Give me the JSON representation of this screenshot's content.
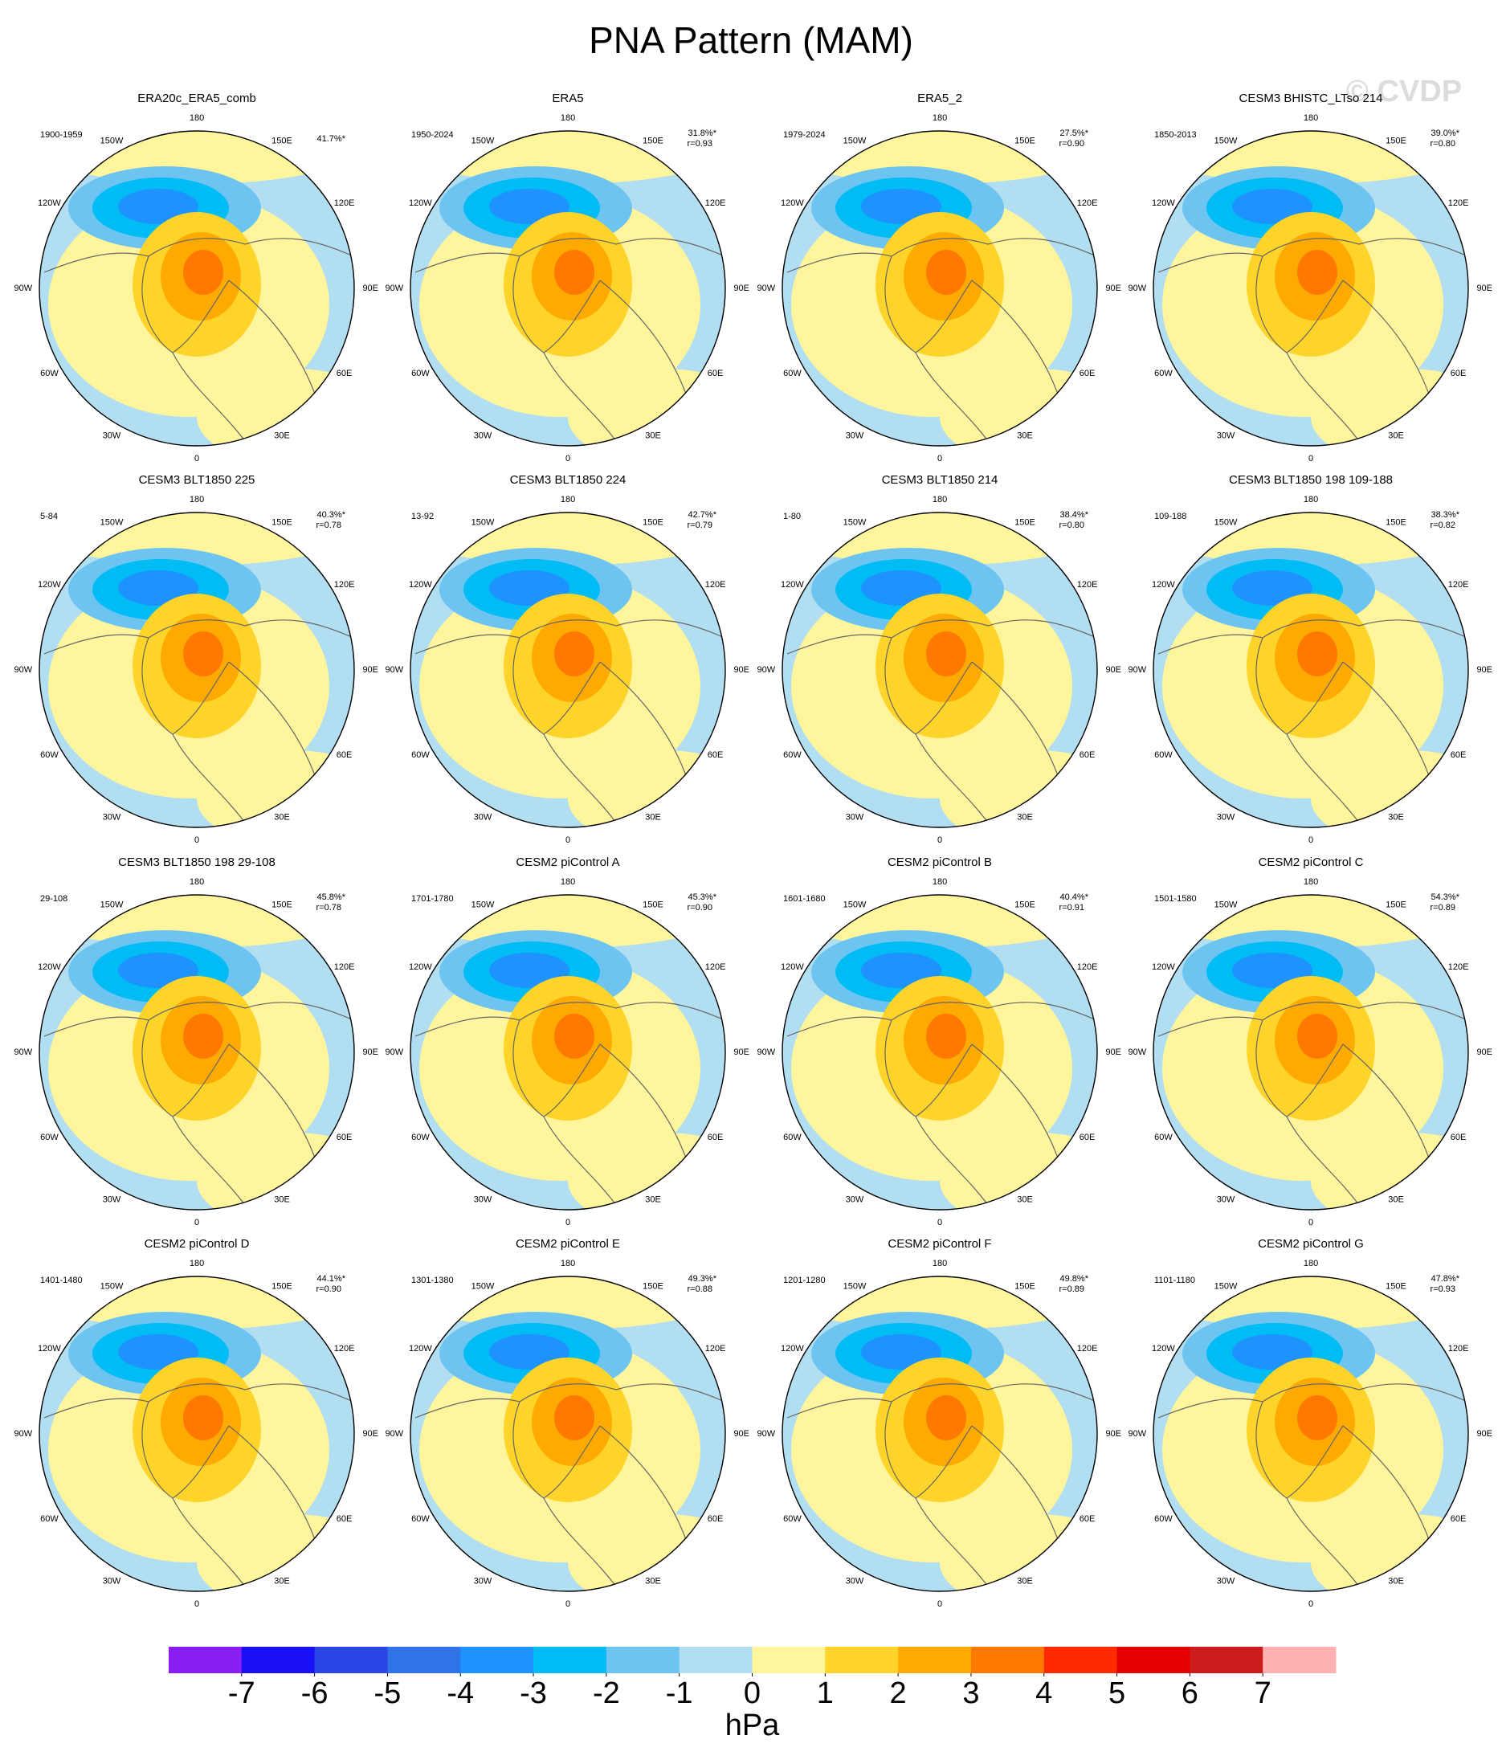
{
  "chart_data": {
    "type": "polar-map-panels",
    "title": "PNA Pattern (MAM)",
    "watermark": "© CVDP",
    "lon_labels": [
      "0",
      "30E",
      "60E",
      "90E",
      "120E",
      "150E",
      "180",
      "150W",
      "120W",
      "90W",
      "60W",
      "30W"
    ],
    "panels": [
      {
        "title": "ERA20c_ERA5_comb",
        "period": "1900-1959",
        "pct": "41.7%*"
      },
      {
        "title": "ERA5",
        "period": "1950-2024",
        "pct": "31.8%*",
        "r": "r=0.93"
      },
      {
        "title": "ERA5_2",
        "period": "1979-2024",
        "pct": "27.5%*",
        "r": "r=0.90"
      },
      {
        "title": "CESM3 BHISTC_LTso 214",
        "period": "1850-2013",
        "pct": "39.0%*",
        "r": "r=0.80"
      },
      {
        "title": "CESM3 BLT1850 225",
        "period": "5-84",
        "pct": "40.3%*",
        "r": "r=0.78"
      },
      {
        "title": "CESM3 BLT1850 224",
        "period": "13-92",
        "pct": "42.7%*",
        "r": "r=0.79"
      },
      {
        "title": "CESM3 BLT1850 214",
        "period": "1-80",
        "pct": "38.4%*",
        "r": "r=0.80"
      },
      {
        "title": "CESM3 BLT1850 198 109-188",
        "period": "109-188",
        "pct": "38.3%*",
        "r": "r=0.82"
      },
      {
        "title": "CESM3 BLT1850 198 29-108",
        "period": "29-108",
        "pct": "45.8%*",
        "r": "r=0.78"
      },
      {
        "title": "CESM2 piControl A",
        "period": "1701-1780",
        "pct": "45.3%*",
        "r": "r=0.90"
      },
      {
        "title": "CESM2 piControl B",
        "period": "1601-1680",
        "pct": "40.4%*",
        "r": "r=0.91"
      },
      {
        "title": "CESM2 piControl C",
        "period": "1501-1580",
        "pct": "54.3%*",
        "r": "r=0.89"
      },
      {
        "title": "CESM2 piControl D",
        "period": "1401-1480",
        "pct": "44.1%*",
        "r": "r=0.90"
      },
      {
        "title": "CESM2 piControl E",
        "period": "1301-1380",
        "pct": "49.3%*",
        "r": "r=0.88"
      },
      {
        "title": "CESM2 piControl F",
        "period": "1201-1280",
        "pct": "49.8%*",
        "r": "r=0.89"
      },
      {
        "title": "CESM2 piControl G",
        "period": "1101-1180",
        "pct": "47.8%*",
        "r": "r=0.93"
      }
    ],
    "colorbar": {
      "colors": [
        "#8a1ef2",
        "#1a10f5",
        "#2a44e6",
        "#3072e8",
        "#1e92ff",
        "#00bcf5",
        "#6ec4f0",
        "#b2def2",
        "#fff59c",
        "#ffd42a",
        "#ffaa00",
        "#ff7800",
        "#ff2a00",
        "#e40000",
        "#cc1c1c",
        "#ffb0b0"
      ],
      "ticks": [
        -7,
        -6,
        -5,
        -4,
        -3,
        -2,
        -1,
        0,
        1,
        2,
        3,
        4,
        5,
        6,
        7
      ],
      "label": "hPa"
    }
  }
}
